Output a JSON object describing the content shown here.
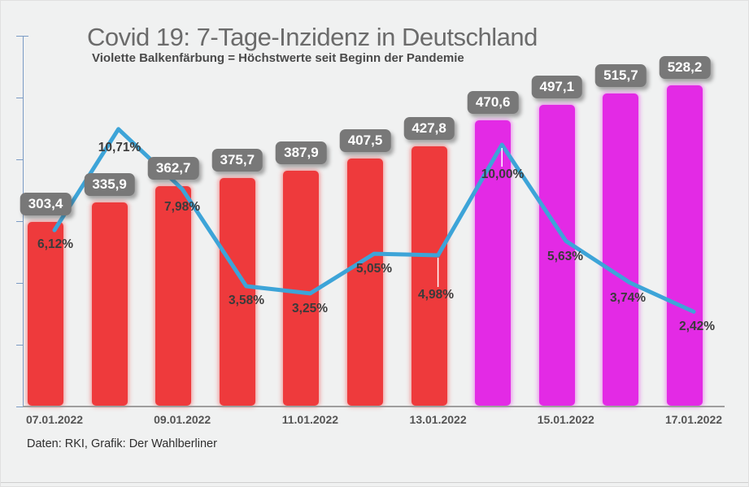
{
  "header": {
    "title": "Covid 19: 7-Tage-Inzidenz in Deutschland",
    "subtitle": "Violette Balkenfärbung = Höchstwerte seit Beginn der Pandemie"
  },
  "footer": {
    "credit": "Daten: RKI, Grafik: Der Wahlberliner"
  },
  "colors": {
    "bar_red": "#ee3a3c",
    "bar_violet": "#e32ae5",
    "line_blue": "#3da4d8",
    "badge_bg": "#787878",
    "badge_text": "#ffffff",
    "y_axis": "#7b9bc4",
    "x_axis": "#9e9e9e",
    "title_text": "#6b6b6b",
    "percent_label": "#3b3b3b"
  },
  "chart_data": {
    "type": "bar",
    "title": "Covid 19: 7-Tage-Inzidenz in Deutschland",
    "subtitle": "Violette Balkenfärbung = Höchstwerte seit Beginn der Pandemie",
    "x_tick_labels": [
      "07.01.2022",
      "09.01.2022",
      "11.01.2022",
      "13.01.2022",
      "15.01.2022",
      "17.01.2022"
    ],
    "bars": {
      "values": [
        303.4,
        335.9,
        362.7,
        375.7,
        387.9,
        407.5,
        427.8,
        470.6,
        497.1,
        515.7,
        528.2
      ],
      "labels": [
        "303,4",
        "335,9",
        "362,7",
        "375,7",
        "387,9",
        "407,5",
        "427,8",
        "470,6",
        "497,1",
        "515,7",
        "528,2"
      ],
      "color_keys": [
        "red",
        "red",
        "red",
        "red",
        "red",
        "red",
        "red",
        "violet",
        "violet",
        "violet",
        "violet"
      ],
      "violet_meaning": "Höchstwerte seit Beginn der Pandemie"
    },
    "line": {
      "values_percent": [
        6.12,
        10.71,
        7.98,
        3.58,
        3.25,
        5.05,
        4.98,
        10.0,
        5.63,
        3.74,
        2.42
      ],
      "labels": [
        "6,12%",
        "10,71%",
        "7,98%",
        "3,58%",
        "3,25%",
        "5,05%",
        "4,98%",
        "10,00%",
        "5,63%",
        "3,74%",
        "2,42%"
      ]
    },
    "y_axis": {
      "labels_visible": false,
      "tick_count": 7
    },
    "grid": "off",
    "legend": "none",
    "source_note": "Daten: RKI, Grafik: Der Wahlberliner"
  }
}
